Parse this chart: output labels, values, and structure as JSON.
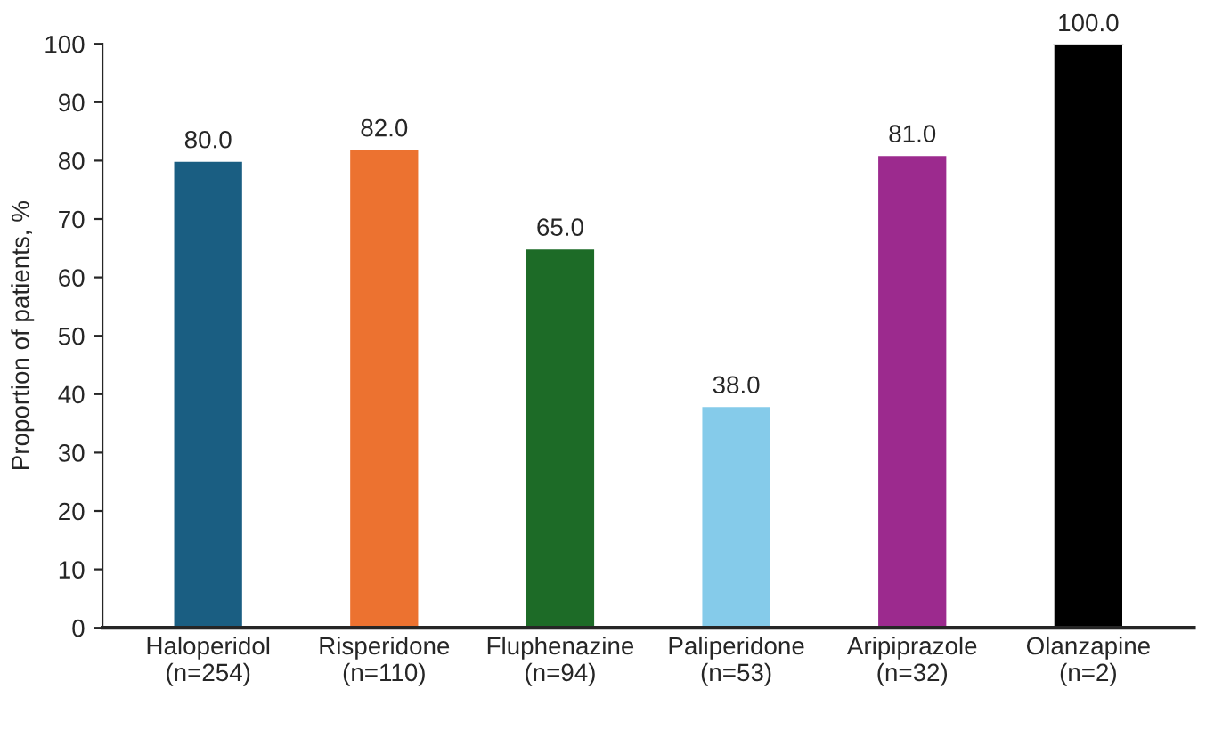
{
  "chart_data": {
    "type": "bar",
    "ylabel": "Proportion of patients, %",
    "categories": [
      "Haloperidol\n(n=254)",
      "Risperidone\n(n=110)",
      "Fluphenazine\n(n=94)",
      "Paliperidone\n(n=53)",
      "Aripiprazole\n(n=32)",
      "Olanzapine\n(n=2)"
    ],
    "values": [
      80.0,
      82.0,
      65.0,
      38.0,
      81.0,
      100.0
    ],
    "colors": [
      "#1a5e82",
      "#ec7230",
      "#1d6b27",
      "#85cbea",
      "#9c2a8e",
      "#000000"
    ],
    "value_labels": [
      "80.0",
      "82.0",
      "65.0",
      "38.0",
      "81.0",
      "100.0"
    ],
    "ylim": [
      0,
      100
    ],
    "yticks": [
      0,
      10,
      20,
      30,
      40,
      50,
      60,
      70,
      80,
      90,
      100
    ],
    "grid": false,
    "legend": false
  }
}
